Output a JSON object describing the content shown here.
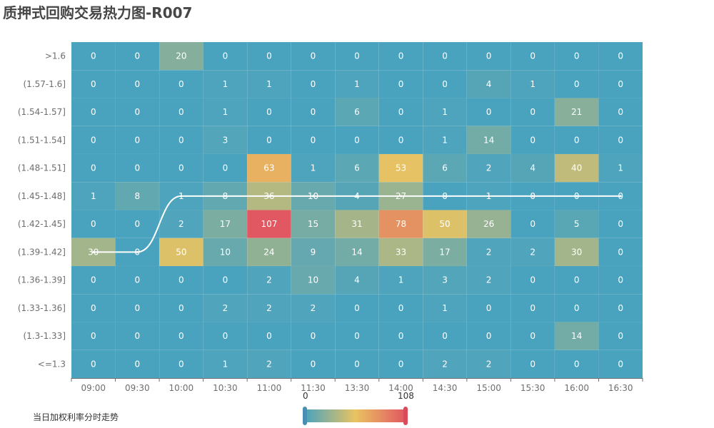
{
  "title": "质押式回购交易热力图-R007",
  "legend_note": "当日加权利率分时走势",
  "visual_map": {
    "min_label": "0",
    "max_label": "108",
    "colors": [
      "#4aa3be",
      "#e9c362",
      "#e15562"
    ]
  },
  "line_color": "#ffffff",
  "chart_data": {
    "type": "heatmap",
    "title": "质押式回购交易热力图-R007",
    "x_categories": [
      "09:00",
      "09:30",
      "10:00",
      "10:30",
      "11:00",
      "11:30",
      "13:30",
      "14:00",
      "14:30",
      "15:00",
      "15:30",
      "16:00",
      "16:30"
    ],
    "y_categories": [
      ">1.6",
      "(1.57-1.6]",
      "(1.54-1.57]",
      "(1.51-1.54]",
      "(1.48-1.51]",
      "(1.45-1.48]",
      "(1.42-1.45]",
      "(1.39-1.42]",
      "(1.36-1.39]",
      "(1.33-1.36]",
      "(1.3-1.33]",
      "<=1.3"
    ],
    "values": [
      [
        0,
        0,
        20,
        0,
        0,
        0,
        0,
        0,
        0,
        0,
        0,
        0,
        0
      ],
      [
        0,
        0,
        0,
        1,
        1,
        0,
        1,
        0,
        0,
        4,
        1,
        0,
        0
      ],
      [
        0,
        0,
        0,
        1,
        0,
        0,
        6,
        0,
        1,
        0,
        0,
        21,
        0
      ],
      [
        0,
        0,
        0,
        3,
        0,
        0,
        0,
        0,
        1,
        14,
        0,
        0,
        0
      ],
      [
        0,
        0,
        0,
        0,
        63,
        1,
        6,
        53,
        6,
        2,
        4,
        40,
        1
      ],
      [
        1,
        8,
        1,
        8,
        36,
        10,
        4,
        27,
        0,
        1,
        0,
        0,
        0
      ],
      [
        0,
        0,
        2,
        17,
        107,
        15,
        31,
        78,
        50,
        26,
        0,
        5,
        0
      ],
      [
        30,
        0,
        50,
        10,
        24,
        9,
        14,
        33,
        17,
        2,
        2,
        30,
        0
      ],
      [
        0,
        0,
        0,
        0,
        2,
        10,
        4,
        1,
        3,
        2,
        0,
        0,
        0
      ],
      [
        0,
        0,
        0,
        2,
        2,
        2,
        0,
        0,
        1,
        0,
        0,
        0,
        0
      ],
      [
        0,
        0,
        0,
        0,
        0,
        0,
        0,
        0,
        0,
        0,
        0,
        14,
        0
      ],
      [
        0,
        0,
        0,
        1,
        2,
        0,
        0,
        0,
        2,
        2,
        0,
        0,
        0
      ]
    ],
    "value_range": [
      0,
      108
    ],
    "series": [
      {
        "type": "line",
        "name": "当日加权利率分时走势",
        "y_categories": [
          "(1.39-1.42]",
          "(1.39-1.42]",
          "(1.45-1.48]",
          "(1.45-1.48]",
          "(1.45-1.48]",
          "(1.45-1.48]",
          "(1.45-1.48]",
          "(1.45-1.48]",
          "(1.45-1.48]",
          "(1.45-1.48]",
          "(1.45-1.48]",
          "(1.45-1.48]",
          "(1.45-1.48]"
        ]
      }
    ]
  }
}
